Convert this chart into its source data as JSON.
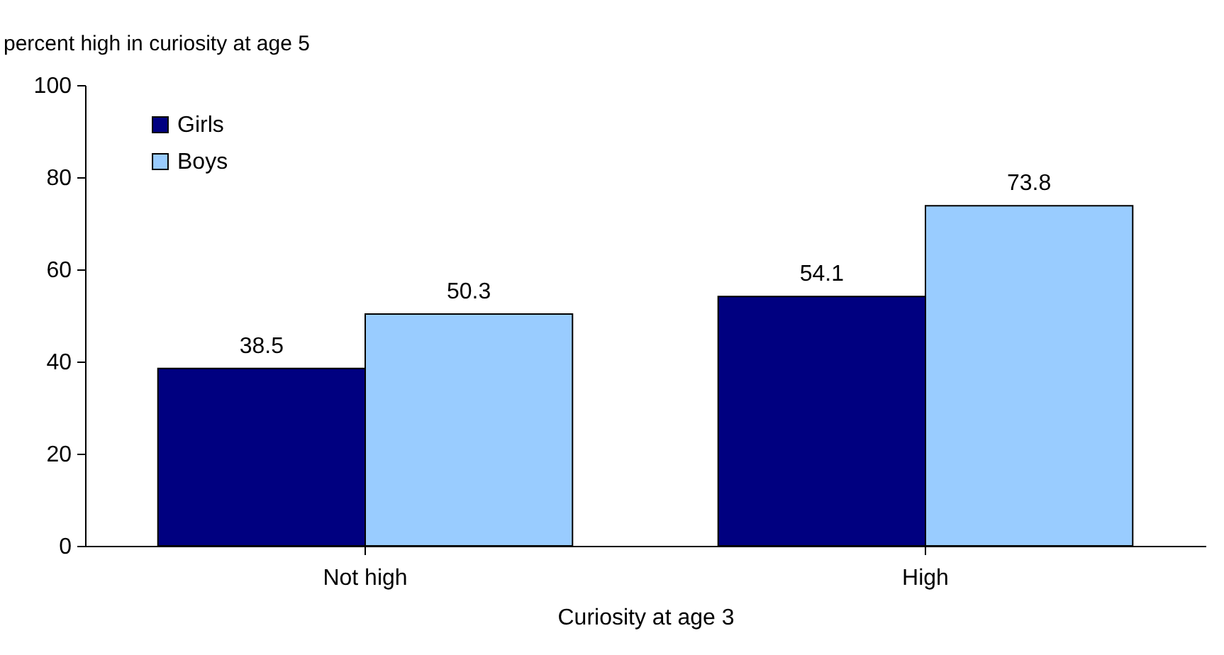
{
  "chart_data": {
    "type": "bar",
    "ylabel": "percent high in curiosity at age 5",
    "xlabel": "Curiosity at age 3",
    "categories": [
      "Not high",
      "High"
    ],
    "series": [
      {
        "name": "Girls",
        "color": "#000080",
        "values": [
          38.5,
          54.1
        ]
      },
      {
        "name": "Boys",
        "color": "#99ccff",
        "values": [
          50.3,
          73.8
        ]
      }
    ],
    "ylim": [
      0,
      100
    ],
    "yticks": [
      0,
      20,
      40,
      60,
      80,
      100
    ],
    "data_labels": true,
    "legend": "top left"
  }
}
